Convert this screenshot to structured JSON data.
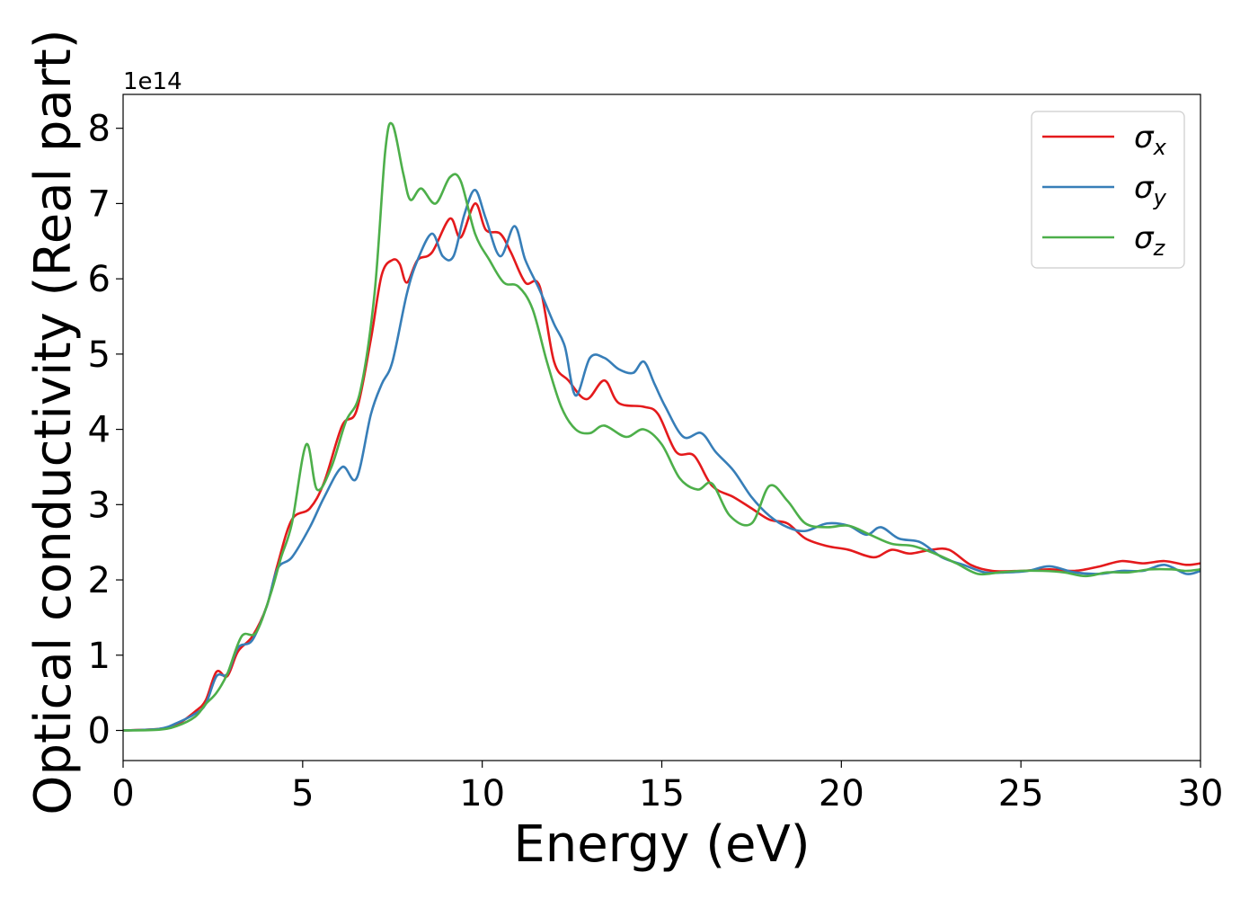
{
  "chart_data": {
    "type": "line",
    "xlabel": "Energy (eV)",
    "ylabel": "Optical conductivity (Real part)",
    "y_offset_label": "1e14",
    "y_scale": 100000000000000.0,
    "xlim": [
      0,
      30
    ],
    "ylim": [
      -0.4,
      8.45
    ],
    "x_ticks": [
      0,
      5,
      10,
      15,
      20,
      25,
      30
    ],
    "y_ticks": [
      0,
      1,
      2,
      3,
      4,
      5,
      6,
      7,
      8
    ],
    "grid": false,
    "legend_position": "top-right",
    "series": [
      {
        "name": "σ",
        "subscript": "x",
        "color": "#e41a1c",
        "points": [
          [
            0,
            0
          ],
          [
            1,
            0.02
          ],
          [
            1.5,
            0.08
          ],
          [
            2,
            0.25
          ],
          [
            2.3,
            0.4
          ],
          [
            2.6,
            0.78
          ],
          [
            2.9,
            0.72
          ],
          [
            3.2,
            1.05
          ],
          [
            3.6,
            1.25
          ],
          [
            4,
            1.65
          ],
          [
            4.3,
            2.2
          ],
          [
            4.7,
            2.8
          ],
          [
            5.2,
            2.95
          ],
          [
            5.6,
            3.3
          ],
          [
            6.1,
            4.05
          ],
          [
            6.5,
            4.25
          ],
          [
            6.9,
            5.2
          ],
          [
            7.2,
            6.05
          ],
          [
            7.5,
            6.25
          ],
          [
            7.7,
            6.2
          ],
          [
            7.9,
            5.95
          ],
          [
            8.2,
            6.25
          ],
          [
            8.6,
            6.35
          ],
          [
            9.1,
            6.8
          ],
          [
            9.4,
            6.55
          ],
          [
            9.8,
            7
          ],
          [
            10.1,
            6.65
          ],
          [
            10.5,
            6.6
          ],
          [
            10.8,
            6.35
          ],
          [
            11.2,
            5.95
          ],
          [
            11.6,
            5.9
          ],
          [
            12,
            4.9
          ],
          [
            12.4,
            4.65
          ],
          [
            12.9,
            4.4
          ],
          [
            13.4,
            4.65
          ],
          [
            13.8,
            4.35
          ],
          [
            14.5,
            4.3
          ],
          [
            14.9,
            4.2
          ],
          [
            15.4,
            3.7
          ],
          [
            15.9,
            3.65
          ],
          [
            16.4,
            3.25
          ],
          [
            17,
            3.1
          ],
          [
            17.5,
            2.95
          ],
          [
            18,
            2.8
          ],
          [
            18.5,
            2.75
          ],
          [
            19,
            2.55
          ],
          [
            19.6,
            2.45
          ],
          [
            20.2,
            2.4
          ],
          [
            20.9,
            2.3
          ],
          [
            21.4,
            2.4
          ],
          [
            21.9,
            2.35
          ],
          [
            22.5,
            2.4
          ],
          [
            23,
            2.4
          ],
          [
            23.6,
            2.2
          ],
          [
            24.2,
            2.12
          ],
          [
            25,
            2.12
          ],
          [
            25.8,
            2.14
          ],
          [
            26.5,
            2.12
          ],
          [
            27.2,
            2.18
          ],
          [
            27.8,
            2.25
          ],
          [
            28.4,
            2.22
          ],
          [
            29,
            2.25
          ],
          [
            29.6,
            2.2
          ],
          [
            30,
            2.22
          ]
        ]
      },
      {
        "name": "σ",
        "subscript": "y",
        "color": "#377eb8",
        "points": [
          [
            0,
            0
          ],
          [
            1,
            0.02
          ],
          [
            1.5,
            0.1
          ],
          [
            2,
            0.22
          ],
          [
            2.3,
            0.35
          ],
          [
            2.6,
            0.72
          ],
          [
            2.9,
            0.75
          ],
          [
            3.2,
            1.1
          ],
          [
            3.6,
            1.2
          ],
          [
            4,
            1.65
          ],
          [
            4.3,
            2.15
          ],
          [
            4.7,
            2.3
          ],
          [
            5.2,
            2.7
          ],
          [
            5.6,
            3.1
          ],
          [
            6.1,
            3.5
          ],
          [
            6.5,
            3.35
          ],
          [
            6.9,
            4.2
          ],
          [
            7.2,
            4.6
          ],
          [
            7.5,
            4.9
          ],
          [
            7.9,
            5.8
          ],
          [
            8.2,
            6.25
          ],
          [
            8.6,
            6.6
          ],
          [
            8.9,
            6.3
          ],
          [
            9.2,
            6.3
          ],
          [
            9.5,
            6.85
          ],
          [
            9.8,
            7.18
          ],
          [
            10.1,
            6.8
          ],
          [
            10.5,
            6.3
          ],
          [
            10.9,
            6.7
          ],
          [
            11.2,
            6.25
          ],
          [
            11.6,
            5.85
          ],
          [
            12,
            5.4
          ],
          [
            12.3,
            5.1
          ],
          [
            12.6,
            4.45
          ],
          [
            13,
            4.95
          ],
          [
            13.4,
            4.95
          ],
          [
            13.8,
            4.8
          ],
          [
            14.2,
            4.75
          ],
          [
            14.5,
            4.9
          ],
          [
            14.8,
            4.6
          ],
          [
            15.1,
            4.3
          ],
          [
            15.6,
            3.9
          ],
          [
            16.1,
            3.95
          ],
          [
            16.5,
            3.7
          ],
          [
            17,
            3.45
          ],
          [
            17.5,
            3.1
          ],
          [
            18,
            2.85
          ],
          [
            18.5,
            2.7
          ],
          [
            19,
            2.65
          ],
          [
            19.6,
            2.75
          ],
          [
            20.2,
            2.72
          ],
          [
            20.7,
            2.6
          ],
          [
            21.1,
            2.7
          ],
          [
            21.6,
            2.55
          ],
          [
            22.2,
            2.5
          ],
          [
            22.8,
            2.3
          ],
          [
            23.4,
            2.2
          ],
          [
            24,
            2.1
          ],
          [
            24.6,
            2.1
          ],
          [
            25.2,
            2.12
          ],
          [
            25.8,
            2.18
          ],
          [
            26.5,
            2.1
          ],
          [
            27.2,
            2.08
          ],
          [
            27.8,
            2.12
          ],
          [
            28.4,
            2.12
          ],
          [
            29,
            2.2
          ],
          [
            29.6,
            2.08
          ],
          [
            30,
            2.12
          ]
        ]
      },
      {
        "name": "σ",
        "subscript": "z",
        "color": "#4daf4a",
        "points": [
          [
            0,
            0
          ],
          [
            1,
            0.01
          ],
          [
            1.5,
            0.06
          ],
          [
            2,
            0.18
          ],
          [
            2.3,
            0.35
          ],
          [
            2.6,
            0.5
          ],
          [
            2.9,
            0.75
          ],
          [
            3.3,
            1.25
          ],
          [
            3.7,
            1.3
          ],
          [
            4.1,
            1.8
          ],
          [
            4.4,
            2.3
          ],
          [
            4.7,
            2.75
          ],
          [
            5.1,
            3.8
          ],
          [
            5.4,
            3.2
          ],
          [
            5.8,
            3.5
          ],
          [
            6.2,
            4.1
          ],
          [
            6.6,
            4.5
          ],
          [
            7,
            5.8
          ],
          [
            7.3,
            7.7
          ],
          [
            7.5,
            8.05
          ],
          [
            7.8,
            7.4
          ],
          [
            8,
            7.05
          ],
          [
            8.3,
            7.2
          ],
          [
            8.7,
            7
          ],
          [
            9.1,
            7.35
          ],
          [
            9.4,
            7.3
          ],
          [
            9.8,
            6.6
          ],
          [
            10.2,
            6.25
          ],
          [
            10.6,
            5.95
          ],
          [
            11,
            5.9
          ],
          [
            11.4,
            5.6
          ],
          [
            11.8,
            4.9
          ],
          [
            12.2,
            4.3
          ],
          [
            12.6,
            4
          ],
          [
            13,
            3.95
          ],
          [
            13.4,
            4.05
          ],
          [
            14,
            3.9
          ],
          [
            14.5,
            4
          ],
          [
            15,
            3.8
          ],
          [
            15.5,
            3.35
          ],
          [
            16,
            3.2
          ],
          [
            16.4,
            3.28
          ],
          [
            16.9,
            2.85
          ],
          [
            17.5,
            2.75
          ],
          [
            18,
            3.25
          ],
          [
            18.5,
            3.05
          ],
          [
            19,
            2.75
          ],
          [
            19.6,
            2.7
          ],
          [
            20.2,
            2.72
          ],
          [
            20.8,
            2.6
          ],
          [
            21.4,
            2.48
          ],
          [
            22,
            2.45
          ],
          [
            22.6,
            2.35
          ],
          [
            23.2,
            2.22
          ],
          [
            23.8,
            2.08
          ],
          [
            24.4,
            2.1
          ],
          [
            25,
            2.12
          ],
          [
            25.6,
            2.12
          ],
          [
            26.2,
            2.1
          ],
          [
            26.8,
            2.05
          ],
          [
            27.4,
            2.1
          ],
          [
            28,
            2.1
          ],
          [
            28.6,
            2.14
          ],
          [
            29.2,
            2.14
          ],
          [
            29.6,
            2.12
          ],
          [
            30,
            2.14
          ]
        ]
      }
    ]
  }
}
